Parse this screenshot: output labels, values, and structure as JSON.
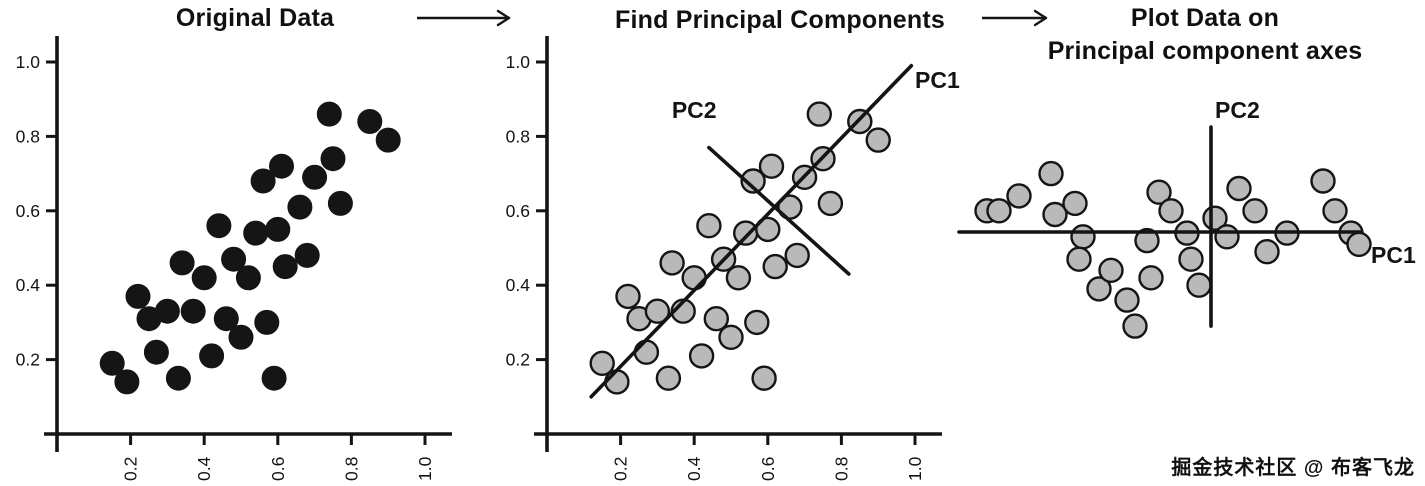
{
  "watermark": {
    "text": "掘金技术社区 @ 布客飞龙"
  },
  "chart_data": [
    {
      "type": "scatter",
      "title": "Original Data",
      "axes": true,
      "xlim": [
        0,
        1.08
      ],
      "ylim": [
        0,
        1.12
      ],
      "x_tick_labels": [
        "0.2",
        "0.4",
        "0.6",
        "0.8",
        "1.0"
      ],
      "y_tick_labels": [
        "0.2",
        "0.4",
        "0.6",
        "0.8",
        "1.0"
      ],
      "grid": false,
      "marker": {
        "fill": "#151515",
        "stroke": "#151515",
        "stroke_width": 2,
        "radius": 11.5
      },
      "points": [
        [
          0.15,
          0.19
        ],
        [
          0.19,
          0.14
        ],
        [
          0.22,
          0.37
        ],
        [
          0.25,
          0.31
        ],
        [
          0.27,
          0.22
        ],
        [
          0.3,
          0.33
        ],
        [
          0.33,
          0.15
        ],
        [
          0.34,
          0.46
        ],
        [
          0.37,
          0.33
        ],
        [
          0.4,
          0.42
        ],
        [
          0.42,
          0.21
        ],
        [
          0.44,
          0.56
        ],
        [
          0.46,
          0.31
        ],
        [
          0.48,
          0.47
        ],
        [
          0.5,
          0.26
        ],
        [
          0.52,
          0.42
        ],
        [
          0.54,
          0.54
        ],
        [
          0.56,
          0.68
        ],
        [
          0.57,
          0.3
        ],
        [
          0.59,
          0.15
        ],
        [
          0.6,
          0.55
        ],
        [
          0.61,
          0.72
        ],
        [
          0.62,
          0.45
        ],
        [
          0.66,
          0.61
        ],
        [
          0.68,
          0.48
        ],
        [
          0.7,
          0.69
        ],
        [
          0.74,
          0.86
        ],
        [
          0.75,
          0.74
        ],
        [
          0.77,
          0.62
        ],
        [
          0.85,
          0.84
        ],
        [
          0.9,
          0.79
        ]
      ]
    },
    {
      "type": "scatter",
      "title": "Find Principal Components",
      "axes": true,
      "xlim": [
        0,
        1.08
      ],
      "ylim": [
        0,
        1.12
      ],
      "x_tick_labels": [
        "0.2",
        "0.4",
        "0.6",
        "0.8",
        "1.0"
      ],
      "y_tick_labels": [
        "0.2",
        "0.4",
        "0.6",
        "0.8",
        "1.0"
      ],
      "grid": false,
      "marker": {
        "fill": "#b9b9b9",
        "stroke": "#151515",
        "stroke_width": 2.4,
        "radius": 11.5
      },
      "points": [
        [
          0.15,
          0.19
        ],
        [
          0.19,
          0.14
        ],
        [
          0.22,
          0.37
        ],
        [
          0.25,
          0.31
        ],
        [
          0.27,
          0.22
        ],
        [
          0.3,
          0.33
        ],
        [
          0.33,
          0.15
        ],
        [
          0.34,
          0.46
        ],
        [
          0.37,
          0.33
        ],
        [
          0.4,
          0.42
        ],
        [
          0.42,
          0.21
        ],
        [
          0.44,
          0.56
        ],
        [
          0.46,
          0.31
        ],
        [
          0.48,
          0.47
        ],
        [
          0.5,
          0.26
        ],
        [
          0.52,
          0.42
        ],
        [
          0.54,
          0.54
        ],
        [
          0.56,
          0.68
        ],
        [
          0.57,
          0.3
        ],
        [
          0.59,
          0.15
        ],
        [
          0.6,
          0.55
        ],
        [
          0.61,
          0.72
        ],
        [
          0.62,
          0.45
        ],
        [
          0.66,
          0.61
        ],
        [
          0.68,
          0.48
        ],
        [
          0.7,
          0.69
        ],
        [
          0.74,
          0.86
        ],
        [
          0.75,
          0.74
        ],
        [
          0.77,
          0.62
        ],
        [
          0.85,
          0.84
        ],
        [
          0.9,
          0.79
        ]
      ],
      "pc_lines": [
        {
          "name": "PC1",
          "from": [
            0.12,
            0.1
          ],
          "to": [
            0.99,
            0.99
          ],
          "label_pos": [
            1.0,
            0.93
          ],
          "label_anchor": "start"
        },
        {
          "name": "PC2",
          "from": [
            0.44,
            0.77
          ],
          "to": [
            0.82,
            0.43
          ],
          "label_pos": [
            0.4,
            0.85
          ],
          "label_anchor": "middle"
        }
      ]
    },
    {
      "type": "scatter",
      "title": "Plot Data on Principal component axes",
      "title_lines": [
        "Plot Data on",
        "Principal component axes"
      ],
      "axes": false,
      "grid": false,
      "marker": {
        "fill": "#b9b9b9",
        "stroke": "#151515",
        "stroke_width": 2.4,
        "radius": 11.5
      },
      "points": [
        [
          0.03,
          0.6
        ],
        [
          0.06,
          0.6
        ],
        [
          0.11,
          0.64
        ],
        [
          0.19,
          0.7
        ],
        [
          0.2,
          0.59
        ],
        [
          0.25,
          0.62
        ],
        [
          0.27,
          0.53
        ],
        [
          0.26,
          0.47
        ],
        [
          0.31,
          0.39
        ],
        [
          0.34,
          0.44
        ],
        [
          0.38,
          0.36
        ],
        [
          0.4,
          0.29
        ],
        [
          0.44,
          0.42
        ],
        [
          0.43,
          0.52
        ],
        [
          0.46,
          0.65
        ],
        [
          0.49,
          0.6
        ],
        [
          0.53,
          0.54
        ],
        [
          0.54,
          0.47
        ],
        [
          0.56,
          0.4
        ],
        [
          0.6,
          0.58
        ],
        [
          0.63,
          0.53
        ],
        [
          0.66,
          0.66
        ],
        [
          0.7,
          0.6
        ],
        [
          0.73,
          0.49
        ],
        [
          0.78,
          0.54
        ],
        [
          0.87,
          0.68
        ],
        [
          0.9,
          0.6
        ],
        [
          0.94,
          0.54
        ],
        [
          0.96,
          0.51
        ]
      ],
      "pc_lines": [
        {
          "name": "PC1",
          "from": [
            -0.04,
            0.543
          ],
          "to": [
            0.965,
            0.543
          ],
          "label_pos": [
            0.99,
            0.46
          ],
          "label_anchor": "start"
        },
        {
          "name": "PC2",
          "from": [
            0.59,
            0.29
          ],
          "to": [
            0.59,
            0.825
          ],
          "label_pos": [
            0.6,
            0.85
          ],
          "label_anchor": "start"
        }
      ]
    }
  ]
}
